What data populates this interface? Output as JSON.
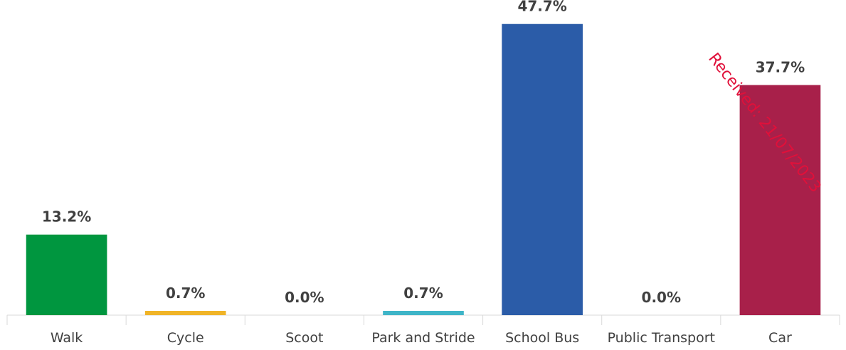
{
  "chart_data": {
    "type": "bar",
    "categories": [
      "Walk",
      "Cycle",
      "Scoot",
      "Park and Stride",
      "School Bus",
      "Public Transport",
      "Car"
    ],
    "values": [
      13.2,
      0.7,
      0.0,
      0.7,
      47.7,
      0.0,
      37.7
    ],
    "data_labels": [
      "13.2%",
      "0.7%",
      "0.0%",
      "0.7%",
      "47.7%",
      "0.0%",
      "37.7%"
    ],
    "colors": [
      "#00963f",
      "#f0b428",
      "#7f7f7f",
      "#3fb5c8",
      "#2b5ca8",
      "#7f7f7f",
      "#a8204a"
    ],
    "ylim": [
      0,
      50
    ],
    "grid": false,
    "legend": "none"
  },
  "watermark": {
    "text": "Received: 21/07/2023",
    "color": "#e0103a"
  }
}
